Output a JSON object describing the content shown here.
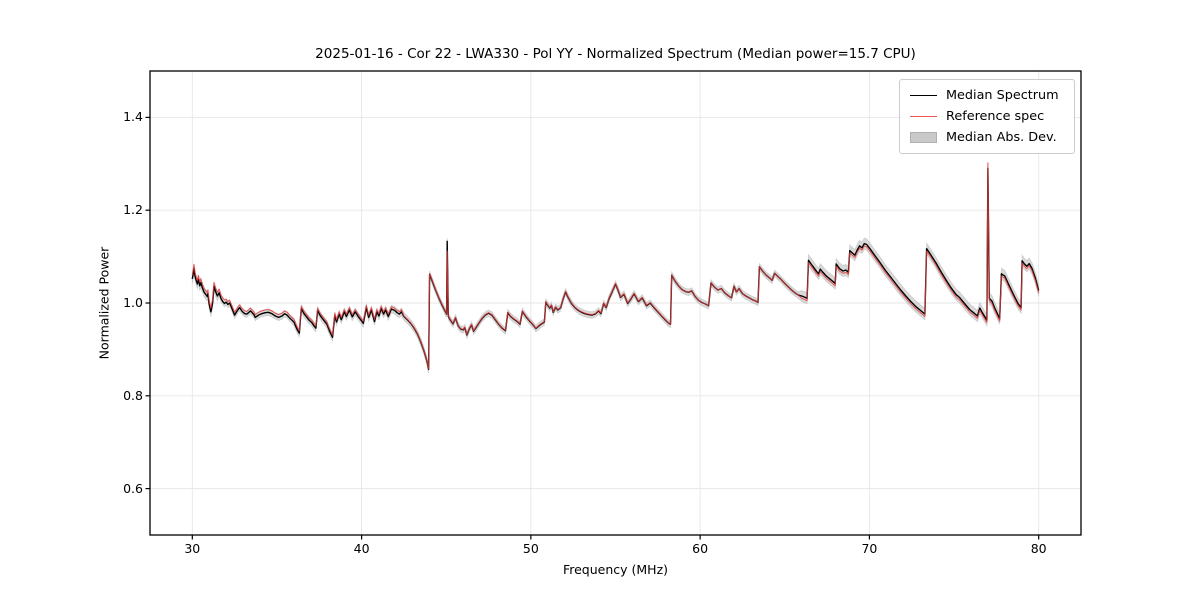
{
  "figure": {
    "title": "2025-01-16 - Cor 22 - LWA330 - Pol YY - Normalized Spectrum (Median power=15.7 CPU)",
    "xlabel": "Frequency (MHz)",
    "ylabel": "Normalized Power"
  },
  "legend": {
    "items": [
      {
        "label": "Median Spectrum",
        "swatch": "line",
        "color": "#000000"
      },
      {
        "label": "Reference spec",
        "swatch": "line",
        "color": "#ee5555"
      },
      {
        "label": "Median Abs. Dev.",
        "swatch": "patch",
        "color": "#c9c9c9"
      }
    ]
  },
  "chart_data": {
    "type": "line",
    "title": "2025-01-16 - Cor 22 - LWA330 - Pol YY - Normalized Spectrum (Median power=15.7 CPU)",
    "xlabel": "Frequency (MHz)",
    "ylabel": "Normalized Power",
    "xlim": [
      27.5,
      82.5
    ],
    "ylim": [
      0.5,
      1.5
    ],
    "xticks": [
      30,
      40,
      50,
      60,
      70,
      80
    ],
    "yticks": [
      0.6,
      0.8,
      1.0,
      1.2,
      1.4
    ],
    "grid": true,
    "grid_color": "#e6e6e6",
    "legend_position": "upper right",
    "median_line_color": "#000000",
    "reference_line_color": "#e23b3b",
    "mad_band_color": "#c4c4c4",
    "series_median_points": [
      [
        30.0,
        1.052
      ],
      [
        30.05,
        1.063
      ],
      [
        30.1,
        1.075
      ],
      [
        30.16,
        1.058
      ],
      [
        30.22,
        1.05
      ],
      [
        30.3,
        1.041
      ],
      [
        30.36,
        1.051
      ],
      [
        30.44,
        1.037
      ],
      [
        30.5,
        1.044
      ],
      [
        30.6,
        1.032
      ],
      [
        30.7,
        1.023
      ],
      [
        30.8,
        1.018
      ],
      [
        30.88,
        1.014
      ],
      [
        30.92,
        1.02
      ],
      [
        31.0,
        0.997
      ],
      [
        31.1,
        0.981
      ],
      [
        31.2,
        1.0
      ],
      [
        31.28,
        1.036
      ],
      [
        31.38,
        1.024
      ],
      [
        31.48,
        1.015
      ],
      [
        31.58,
        1.022
      ],
      [
        31.7,
        1.009
      ],
      [
        31.8,
        1.003
      ],
      [
        31.9,
        0.999
      ],
      [
        32.0,
        1.002
      ],
      [
        32.1,
        0.997
      ],
      [
        32.2,
        1.0
      ],
      [
        32.32,
        0.99
      ],
      [
        32.42,
        0.981
      ],
      [
        32.5,
        0.974
      ],
      [
        32.6,
        0.98
      ],
      [
        32.72,
        0.987
      ],
      [
        32.8,
        0.99
      ],
      [
        32.9,
        0.984
      ],
      [
        33.0,
        0.98
      ],
      [
        33.1,
        0.977
      ],
      [
        33.22,
        0.976
      ],
      [
        33.34,
        0.98
      ],
      [
        33.44,
        0.983
      ],
      [
        33.54,
        0.979
      ],
      [
        33.64,
        0.975
      ],
      [
        33.72,
        0.969
      ],
      [
        33.84,
        0.972
      ],
      [
        33.96,
        0.975
      ],
      [
        34.1,
        0.977
      ],
      [
        34.3,
        0.979
      ],
      [
        34.5,
        0.98
      ],
      [
        34.7,
        0.977
      ],
      [
        34.9,
        0.972
      ],
      [
        35.1,
        0.969
      ],
      [
        35.3,
        0.972
      ],
      [
        35.45,
        0.977
      ],
      [
        35.6,
        0.974
      ],
      [
        35.8,
        0.966
      ],
      [
        36.0,
        0.959
      ],
      [
        36.18,
        0.944
      ],
      [
        36.32,
        0.935
      ],
      [
        36.44,
        0.988
      ],
      [
        36.6,
        0.977
      ],
      [
        36.75,
        0.97
      ],
      [
        36.9,
        0.963
      ],
      [
        37.05,
        0.958
      ],
      [
        37.2,
        0.95
      ],
      [
        37.3,
        0.946
      ],
      [
        37.4,
        0.984
      ],
      [
        37.52,
        0.975
      ],
      [
        37.65,
        0.968
      ],
      [
        37.8,
        0.961
      ],
      [
        37.95,
        0.954
      ],
      [
        38.1,
        0.94
      ],
      [
        38.28,
        0.926
      ],
      [
        38.42,
        0.973
      ],
      [
        38.52,
        0.959
      ],
      [
        38.68,
        0.976
      ],
      [
        38.8,
        0.964
      ],
      [
        38.98,
        0.981
      ],
      [
        39.1,
        0.971
      ],
      [
        39.28,
        0.985
      ],
      [
        39.45,
        0.97
      ],
      [
        39.62,
        0.981
      ],
      [
        39.8,
        0.971
      ],
      [
        39.98,
        0.962
      ],
      [
        40.1,
        0.956
      ],
      [
        40.28,
        0.99
      ],
      [
        40.42,
        0.969
      ],
      [
        40.58,
        0.985
      ],
      [
        40.76,
        0.96
      ],
      [
        40.9,
        0.981
      ],
      [
        41.02,
        0.972
      ],
      [
        41.16,
        0.988
      ],
      [
        41.3,
        0.976
      ],
      [
        41.42,
        0.985
      ],
      [
        41.58,
        0.971
      ],
      [
        41.76,
        0.987
      ],
      [
        41.95,
        0.984
      ],
      [
        42.1,
        0.979
      ],
      [
        42.24,
        0.976
      ],
      [
        42.36,
        0.981
      ],
      [
        42.5,
        0.971
      ],
      [
        42.7,
        0.964
      ],
      [
        42.9,
        0.956
      ],
      [
        43.1,
        0.946
      ],
      [
        43.3,
        0.933
      ],
      [
        43.5,
        0.916
      ],
      [
        43.7,
        0.895
      ],
      [
        43.85,
        0.876
      ],
      [
        43.96,
        0.857
      ],
      [
        44.02,
        1.062
      ],
      [
        44.18,
        1.047
      ],
      [
        44.35,
        1.03
      ],
      [
        44.55,
        1.012
      ],
      [
        44.75,
        0.996
      ],
      [
        44.95,
        0.981
      ],
      [
        45.02,
        0.976
      ],
      [
        45.06,
        1.133
      ],
      [
        45.12,
        0.971
      ],
      [
        45.25,
        0.963
      ],
      [
        45.4,
        0.955
      ],
      [
        45.55,
        0.968
      ],
      [
        45.7,
        0.951
      ],
      [
        45.85,
        0.944
      ],
      [
        46.0,
        0.942
      ],
      [
        46.1,
        0.947
      ],
      [
        46.22,
        0.931
      ],
      [
        46.36,
        0.944
      ],
      [
        46.5,
        0.953
      ],
      [
        46.62,
        0.939
      ],
      [
        46.76,
        0.947
      ],
      [
        46.92,
        0.956
      ],
      [
        47.1,
        0.966
      ],
      [
        47.3,
        0.974
      ],
      [
        47.5,
        0.978
      ],
      [
        47.7,
        0.974
      ],
      [
        47.9,
        0.964
      ],
      [
        48.1,
        0.954
      ],
      [
        48.3,
        0.946
      ],
      [
        48.5,
        0.94
      ],
      [
        48.64,
        0.979
      ],
      [
        48.8,
        0.971
      ],
      [
        49.0,
        0.965
      ],
      [
        49.2,
        0.96
      ],
      [
        49.36,
        0.954
      ],
      [
        49.5,
        0.982
      ],
      [
        49.7,
        0.971
      ],
      [
        49.9,
        0.962
      ],
      [
        50.1,
        0.954
      ],
      [
        50.3,
        0.945
      ],
      [
        50.55,
        0.953
      ],
      [
        50.8,
        0.959
      ],
      [
        50.88,
        1.002
      ],
      [
        51.0,
        0.995
      ],
      [
        51.12,
        0.989
      ],
      [
        51.22,
        0.995
      ],
      [
        51.32,
        0.98
      ],
      [
        51.46,
        0.991
      ],
      [
        51.6,
        0.985
      ],
      [
        51.76,
        0.99
      ],
      [
        51.9,
        1.008
      ],
      [
        52.05,
        1.024
      ],
      [
        52.2,
        1.012
      ],
      [
        52.4,
        0.999
      ],
      [
        52.6,
        0.99
      ],
      [
        52.8,
        0.984
      ],
      [
        53.0,
        0.98
      ],
      [
        53.2,
        0.977
      ],
      [
        53.4,
        0.975
      ],
      [
        53.6,
        0.974
      ],
      [
        53.8,
        0.976
      ],
      [
        54.0,
        0.983
      ],
      [
        54.14,
        0.977
      ],
      [
        54.3,
        0.999
      ],
      [
        54.45,
        0.99
      ],
      [
        54.62,
        1.01
      ],
      [
        54.8,
        1.024
      ],
      [
        55.0,
        1.041
      ],
      [
        55.16,
        1.027
      ],
      [
        55.3,
        1.012
      ],
      [
        55.5,
        1.019
      ],
      [
        55.72,
        0.999
      ],
      [
        55.9,
        1.008
      ],
      [
        56.1,
        1.02
      ],
      [
        56.35,
        1.003
      ],
      [
        56.58,
        1.011
      ],
      [
        56.84,
        0.994
      ],
      [
        57.05,
        1.0
      ],
      [
        57.3,
        0.989
      ],
      [
        57.6,
        0.977
      ],
      [
        57.9,
        0.965
      ],
      [
        58.15,
        0.956
      ],
      [
        58.25,
        0.954
      ],
      [
        58.32,
        1.06
      ],
      [
        58.52,
        1.047
      ],
      [
        58.72,
        1.037
      ],
      [
        58.92,
        1.029
      ],
      [
        59.12,
        1.025
      ],
      [
        59.32,
        1.023
      ],
      [
        59.5,
        1.026
      ],
      [
        59.7,
        1.014
      ],
      [
        59.9,
        1.006
      ],
      [
        60.1,
        1.001
      ],
      [
        60.3,
        0.998
      ],
      [
        60.5,
        0.994
      ],
      [
        60.64,
        1.043
      ],
      [
        60.85,
        1.034
      ],
      [
        61.05,
        1.028
      ],
      [
        61.25,
        1.031
      ],
      [
        61.45,
        1.022
      ],
      [
        61.65,
        1.016
      ],
      [
        61.85,
        1.011
      ],
      [
        62.0,
        1.036
      ],
      [
        62.14,
        1.024
      ],
      [
        62.3,
        1.031
      ],
      [
        62.5,
        1.02
      ],
      [
        62.7,
        1.015
      ],
      [
        62.9,
        1.011
      ],
      [
        63.1,
        1.007
      ],
      [
        63.3,
        1.004
      ],
      [
        63.42,
        1.001
      ],
      [
        63.5,
        1.078
      ],
      [
        63.7,
        1.068
      ],
      [
        63.9,
        1.06
      ],
      [
        64.1,
        1.054
      ],
      [
        64.25,
        1.049
      ],
      [
        64.4,
        1.064
      ],
      [
        64.6,
        1.057
      ],
      [
        64.8,
        1.05
      ],
      [
        65.0,
        1.042
      ],
      [
        65.2,
        1.035
      ],
      [
        65.4,
        1.028
      ],
      [
        65.6,
        1.022
      ],
      [
        65.8,
        1.017
      ],
      [
        66.0,
        1.015
      ],
      [
        66.2,
        1.012
      ],
      [
        66.32,
        1.01
      ],
      [
        66.4,
        1.092
      ],
      [
        66.58,
        1.083
      ],
      [
        66.72,
        1.076
      ],
      [
        66.88,
        1.068
      ],
      [
        67.0,
        1.063
      ],
      [
        67.1,
        1.073
      ],
      [
        67.26,
        1.066
      ],
      [
        67.46,
        1.058
      ],
      [
        67.66,
        1.052
      ],
      [
        67.86,
        1.046
      ],
      [
        67.98,
        1.042
      ],
      [
        68.04,
        1.084
      ],
      [
        68.24,
        1.074
      ],
      [
        68.44,
        1.069
      ],
      [
        68.62,
        1.071
      ],
      [
        68.76,
        1.066
      ],
      [
        68.84,
        1.113
      ],
      [
        69.02,
        1.107
      ],
      [
        69.14,
        1.103
      ],
      [
        69.28,
        1.114
      ],
      [
        69.42,
        1.123
      ],
      [
        69.56,
        1.119
      ],
      [
        69.7,
        1.128
      ],
      [
        69.84,
        1.126
      ],
      [
        70.05,
        1.116
      ],
      [
        70.35,
        1.101
      ],
      [
        70.65,
        1.086
      ],
      [
        70.95,
        1.07
      ],
      [
        71.25,
        1.056
      ],
      [
        71.55,
        1.042
      ],
      [
        71.85,
        1.028
      ],
      [
        72.15,
        1.015
      ],
      [
        72.45,
        1.003
      ],
      [
        72.75,
        0.992
      ],
      [
        73.05,
        0.983
      ],
      [
        73.28,
        0.976
      ],
      [
        73.38,
        1.117
      ],
      [
        73.62,
        1.104
      ],
      [
        73.92,
        1.087
      ],
      [
        74.22,
        1.068
      ],
      [
        74.52,
        1.05
      ],
      [
        74.82,
        1.033
      ],
      [
        75.12,
        1.018
      ],
      [
        75.32,
        1.012
      ],
      [
        75.62,
        0.999
      ],
      [
        75.92,
        0.986
      ],
      [
        76.22,
        0.977
      ],
      [
        76.38,
        0.972
      ],
      [
        76.52,
        0.989
      ],
      [
        76.66,
        0.98
      ],
      [
        76.82,
        0.97
      ],
      [
        76.94,
        0.963
      ],
      [
        77.0,
        1.29
      ],
      [
        77.08,
        1.01
      ],
      [
        77.24,
        1.004
      ],
      [
        77.4,
        0.989
      ],
      [
        77.56,
        0.977
      ],
      [
        77.7,
        0.966
      ],
      [
        77.8,
        1.063
      ],
      [
        78.0,
        1.058
      ],
      [
        78.25,
        1.038
      ],
      [
        78.5,
        1.019
      ],
      [
        78.78,
        0.999
      ],
      [
        78.96,
        0.99
      ],
      [
        79.02,
        1.091
      ],
      [
        79.16,
        1.084
      ],
      [
        79.3,
        1.079
      ],
      [
        79.44,
        1.085
      ],
      [
        79.6,
        1.075
      ],
      [
        79.8,
        1.054
      ],
      [
        80.0,
        1.027
      ]
    ],
    "reference_delta_segments": [
      {
        "from": 30.0,
        "to": 32.0,
        "delta": 0.008
      },
      {
        "from": 32.0,
        "to": 36.3,
        "delta": 0.006
      },
      {
        "from": 36.3,
        "to": 42.5,
        "delta": 0.005
      },
      {
        "from": 42.5,
        "to": 58.0,
        "delta": 0.001
      },
      {
        "from": 58.0,
        "to": 66.0,
        "delta": 0.0
      },
      {
        "from": 66.0,
        "to": 80.1,
        "delta": -0.005
      }
    ],
    "reference_overrides": {
      "45.06": 1.112,
      "77": 1.302
    },
    "mad_halfwidth_segments": [
      {
        "from": 30.0,
        "to": 31.5,
        "hw": 0.01
      },
      {
        "from": 31.5,
        "to": 36.0,
        "hw": 0.007
      },
      {
        "from": 36.0,
        "to": 44.0,
        "hw": 0.008
      },
      {
        "from": 44.0,
        "to": 58.0,
        "hw": 0.007
      },
      {
        "from": 58.0,
        "to": 66.0,
        "hw": 0.007
      },
      {
        "from": 66.0,
        "to": 80.1,
        "hw": 0.012
      }
    ]
  }
}
